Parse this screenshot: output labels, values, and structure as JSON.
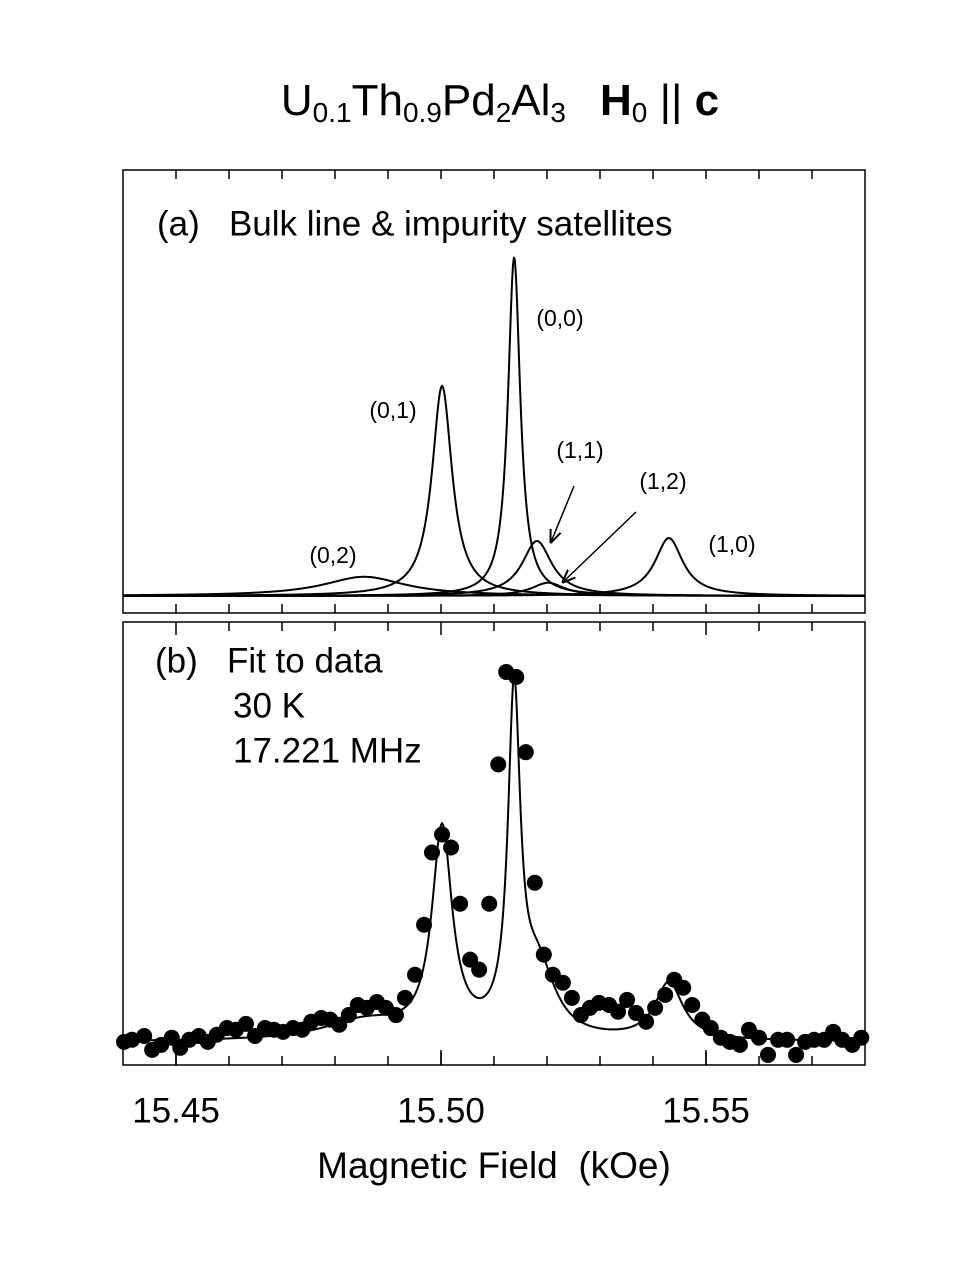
{
  "title": [
    {
      "text": "U",
      "style": "normal"
    },
    {
      "text": "0.1",
      "style": "sub"
    },
    {
      "text": "Th",
      "style": "normal"
    },
    {
      "text": "0.9",
      "style": "sub"
    },
    {
      "text": "Pd",
      "style": "normal"
    },
    {
      "text": "2",
      "style": "sub"
    },
    {
      "text": "Al",
      "style": "normal"
    },
    {
      "text": "3",
      "style": "sub"
    },
    {
      "text": "H",
      "style": "bold"
    },
    {
      "text": "0",
      "style": "sub"
    },
    {
      "text": " || ",
      "style": "normal"
    },
    {
      "text": "c",
      "style": "bold"
    }
  ],
  "chart_data": [
    {
      "type": "lorentzian",
      "label": "(a)   Bulk line & impurity satellites",
      "color": "#000000",
      "xlim": [
        15.44,
        15.58
      ],
      "xminorticks": [
        15.45,
        15.46,
        15.47,
        15.48,
        15.49,
        15.5,
        15.51,
        15.52,
        15.53,
        15.54,
        15.55,
        15.56,
        15.57
      ],
      "ylim": [
        -0.04,
        1.0
      ],
      "series": [
        {
          "name": "(0,2)",
          "center": 15.4855,
          "height": 0.045,
          "width": 0.0094
        },
        {
          "name": "(0,1)",
          "center": 15.5002,
          "height": 0.493,
          "width": 0.0023
        },
        {
          "name": "(0,0)",
          "center": 15.5138,
          "height": 0.796,
          "width": 0.0014
        },
        {
          "name": "(1,1)",
          "center": 15.5181,
          "height": 0.129,
          "width": 0.0034
        },
        {
          "name": "(1,2)",
          "center": 15.5202,
          "height": 0.031,
          "width": 0.0038
        },
        {
          "name": "(1,0)",
          "center": 15.543,
          "height": 0.136,
          "width": 0.0032
        }
      ]
    },
    {
      "type": "scatter",
      "label": "(b)   Fit to data",
      "annotations": [
        "30 K",
        "17.221 MHz"
      ],
      "color": "#000000",
      "fit_line": true,
      "xlabel": "Magnetic Field  (kOe)",
      "xlim": [
        15.44,
        15.58
      ],
      "xticks": [
        15.45,
        {
          "value": 15.5,
          "label": "15.50"
        },
        15.55
      ],
      "xminorticks": [
        15.45,
        15.46,
        15.47,
        15.48,
        15.49,
        15.5,
        15.51,
        15.52,
        15.53,
        15.54,
        15.55,
        15.56,
        15.57
      ],
      "ylim": [
        -0.055,
        1.0
      ],
      "x": [
        15.4402,
        15.4417,
        15.444,
        15.4455,
        15.4472,
        15.4492,
        15.4508,
        15.4525,
        15.4543,
        15.456,
        15.4577,
        15.4596,
        15.4613,
        15.4632,
        15.4649,
        15.4668,
        15.4685,
        15.4702,
        15.4721,
        15.4738,
        15.4755,
        15.4774,
        15.4791,
        15.4808,
        15.4826,
        15.4843,
        15.486,
        15.4879,
        15.4896,
        15.4915,
        15.4932,
        15.4951,
        15.4968,
        15.4983,
        15.5002,
        15.5019,
        15.5036,
        15.5055,
        15.5072,
        15.5091,
        15.5108,
        15.5123,
        15.5142,
        15.516,
        15.5177,
        15.5194,
        15.5211,
        15.523,
        15.5247,
        15.5264,
        15.5281,
        15.5298,
        15.5317,
        15.5334,
        15.5351,
        15.5368,
        15.5387,
        15.5404,
        15.5423,
        15.544,
        15.5457,
        15.5474,
        15.5493,
        15.5509,
        15.5528,
        15.5545,
        15.5564,
        15.5581,
        15.56,
        15.5617,
        15.5636,
        15.5653,
        15.567,
        15.5687,
        15.5704,
        15.5723,
        15.574,
        15.5757,
        15.5776,
        15.5793
      ],
      "values": [
        0,
        0.005,
        0.014,
        -0.019,
        -0.007,
        0.01,
        -0.014,
        0.005,
        0.014,
        0,
        0.017,
        0.033,
        0.029,
        0.043,
        0.014,
        0.033,
        0.029,
        0.024,
        0.033,
        0.029,
        0.048,
        0.057,
        0.053,
        0.041,
        0.064,
        0.088,
        0.081,
        0.095,
        0.081,
        0.064,
        0.105,
        0.16,
        0.279,
        0.451,
        0.494,
        0.463,
        0.329,
        0.196,
        0.172,
        0.329,
        0.661,
        0.881,
        0.869,
        0.69,
        0.379,
        0.208,
        0.16,
        0.141,
        0.105,
        0.064,
        0.081,
        0.093,
        0.088,
        0.072,
        0.1,
        0.069,
        0.048,
        0.081,
        0.112,
        0.148,
        0.129,
        0.088,
        0.053,
        0.033,
        0.01,
        0,
        -0.007,
        0.029,
        0.01,
        -0.031,
        0.005,
        0.005,
        -0.031,
        0,
        0.005,
        0.005,
        0.024,
        0.005,
        -0.007,
        0.01
      ]
    }
  ]
}
